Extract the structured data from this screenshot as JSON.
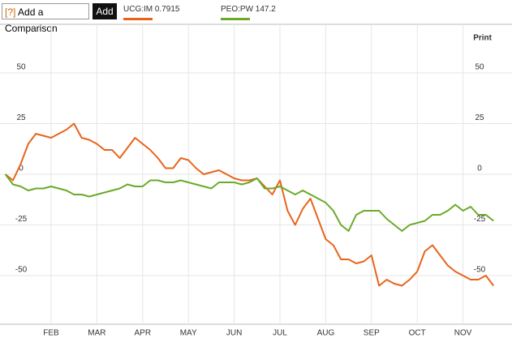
{
  "ui": {
    "help": "[?]",
    "compare": "Add a Comparison",
    "add": "Add",
    "print": "Print"
  },
  "chart_data": {
    "type": "line",
    "categories": [
      null,
      null,
      null,
      null,
      null,
      null,
      "FEB",
      null,
      null,
      null,
      null,
      null,
      "MAR",
      null,
      null,
      null,
      null,
      null,
      "APR",
      null,
      null,
      null,
      null,
      null,
      "MAY",
      null,
      null,
      null,
      null,
      null,
      "JUN",
      null,
      null,
      null,
      null,
      null,
      "JUL",
      null,
      null,
      null,
      null,
      null,
      "AUG",
      null,
      null,
      null,
      null,
      null,
      "SEP",
      null,
      null,
      null,
      null,
      null,
      "OCT",
      null,
      null,
      null,
      null,
      null,
      "NOV",
      null,
      null,
      null,
      null
    ],
    "series": [
      {
        "name": "UCG:IM 0.7915",
        "color": "#e8641b",
        "values": [
          0,
          -3,
          5,
          15,
          20,
          19,
          18,
          20,
          22,
          25,
          18,
          17,
          15,
          12,
          12,
          8,
          13,
          18,
          15,
          12,
          8,
          3,
          3,
          8,
          7,
          3,
          0,
          1,
          2,
          0,
          -2,
          -3,
          -3,
          -2,
          -6,
          -10,
          -3,
          -18,
          -25,
          -17,
          -12,
          -22,
          -32,
          -35,
          -42,
          -42,
          -44,
          -43,
          -40,
          -55,
          -52,
          -54,
          -55,
          -52,
          -48,
          -38,
          -35,
          -40,
          -45,
          -48,
          -50,
          -52,
          -52,
          -50,
          -55
        ]
      },
      {
        "name": "PEO:PW 147.2",
        "color": "#6aaa2a",
        "values": [
          0,
          -5,
          -6,
          -8,
          -7,
          -7,
          -6,
          -7,
          -8,
          -10,
          -10,
          -11,
          -10,
          -9,
          -8,
          -7,
          -5,
          -6,
          -6,
          -3,
          -3,
          -4,
          -4,
          -3,
          -4,
          -5,
          -6,
          -7,
          -4,
          -4,
          -4,
          -5,
          -4,
          -2,
          -7,
          -7,
          -6,
          -8,
          -10,
          -8,
          -10,
          -12,
          -14,
          -18,
          -25,
          -28,
          -20,
          -18,
          -18,
          -18,
          -22,
          -25,
          -28,
          -25,
          -24,
          -23,
          -20,
          -20,
          -18,
          -15,
          -18,
          -16,
          -20,
          -20,
          -23
        ]
      }
    ],
    "ylim": [
      -74,
      74
    ],
    "yticks": [
      -50,
      -25,
      0,
      25,
      50
    ],
    "grid": true
  }
}
